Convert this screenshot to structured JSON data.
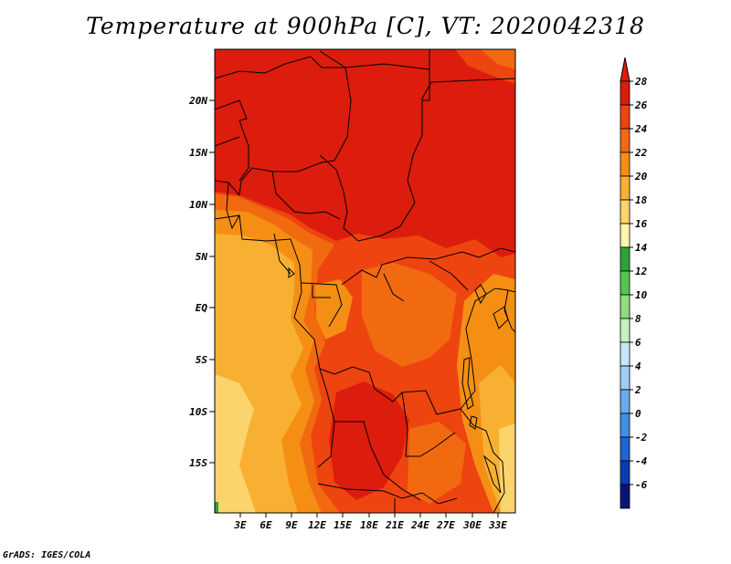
{
  "title": "Temperature at 900hPa [C], VT: 2020042318",
  "credit": "GrADS: IGES/COLA",
  "map": {
    "lat_labels": [
      "20N",
      "15N",
      "10N",
      "5N",
      "EQ",
      "5S",
      "10S",
      "15S"
    ],
    "lon_labels": [
      "3E",
      "6E",
      "9E",
      "12E",
      "15E",
      "18E",
      "21E",
      "24E",
      "27E",
      "30E",
      "33E"
    ]
  },
  "colorbar": {
    "labels": [
      "28",
      "26",
      "24",
      "22",
      "20",
      "18",
      "16",
      "14",
      "12",
      "10",
      "8",
      "6",
      "4",
      "2",
      "0",
      "-2",
      "-4",
      "-6"
    ],
    "colors": [
      "#dc1c0c",
      "#ee4410",
      "#f26a10",
      "#f58f14",
      "#f8b032",
      "#fbd46c",
      "#fdf5b0",
      "#2ea33b",
      "#55c450",
      "#90dc7e",
      "#c8f0c0",
      "#c8e6fa",
      "#a0cdf3",
      "#6cacec",
      "#428ee2",
      "#1e64d2",
      "#0c3cb4",
      "#081478"
    ],
    "top_arrow_color": "#dc1c0c",
    "bottom_arrow_color": "#dde3f8"
  },
  "field_colors": {
    "t28": "#dc1c0c",
    "t26": "#ee4410",
    "t24": "#f26a10",
    "t22": "#f58f14",
    "t20": "#f8b032",
    "t18": "#fbd46c",
    "t16": "#fdf5b0",
    "green": "#2ea33b"
  }
}
